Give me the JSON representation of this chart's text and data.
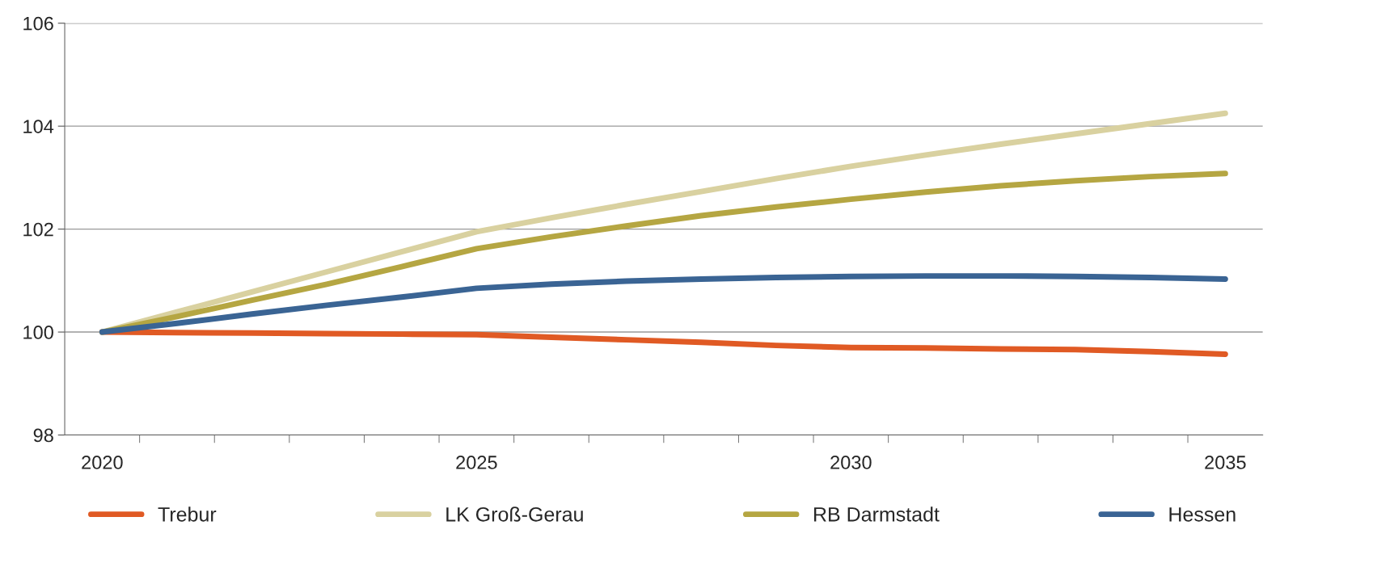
{
  "chart_data": {
    "type": "line",
    "x": [
      2020,
      2021,
      2022,
      2023,
      2024,
      2025,
      2026,
      2027,
      2028,
      2029,
      2030,
      2031,
      2032,
      2033,
      2034,
      2035
    ],
    "xlim": [
      2019.5,
      2035.5
    ],
    "xticks": [
      2020,
      {
        "value": 2020.5,
        "label": null
      },
      {
        "value": 2021.5,
        "label": null
      },
      {
        "value": 2022.5,
        "label": null
      },
      {
        "value": 2023.5,
        "label": null
      },
      {
        "value": 2024.5,
        "label": null
      },
      2025,
      {
        "value": 2025.5,
        "label": null
      },
      {
        "value": 2026.5,
        "label": null
      },
      {
        "value": 2027.5,
        "label": null
      },
      {
        "value": 2028.5,
        "label": null
      },
      {
        "value": 2029.5,
        "label": null
      },
      2030,
      {
        "value": 2030.5,
        "label": null
      },
      {
        "value": 2031.5,
        "label": null
      },
      {
        "value": 2032.5,
        "label": null
      },
      {
        "value": 2033.5,
        "label": null
      },
      {
        "value": 2034.5,
        "label": null
      },
      2035
    ],
    "ylim": [
      98,
      106
    ],
    "yticks": [
      98,
      100,
      102,
      104,
      106
    ],
    "grid": "y",
    "legend": "bottom",
    "marker": "none",
    "line_style": "solid",
    "series": [
      {
        "name": "Trebur",
        "color": "#e05a24",
        "values": [
          100,
          99.99,
          99.98,
          99.97,
          99.96,
          99.95,
          99.9,
          99.85,
          99.8,
          99.74,
          99.7,
          99.69,
          99.67,
          99.66,
          99.62,
          99.57
        ]
      },
      {
        "name": "LK Groß-Gerau",
        "color": "#d9d1a0",
        "values": [
          100,
          100.39,
          100.78,
          101.17,
          101.56,
          101.95,
          102.22,
          102.48,
          102.73,
          102.98,
          103.22,
          103.44,
          103.65,
          103.85,
          104.05,
          104.25
        ]
      },
      {
        "name": "RB Darmstadt",
        "color": "#b5a642",
        "values": [
          100,
          100.3,
          100.62,
          100.93,
          101.27,
          101.62,
          101.85,
          102.06,
          102.26,
          102.43,
          102.58,
          102.72,
          102.84,
          102.94,
          103.02,
          103.08
        ]
      },
      {
        "name": "Hessen",
        "color": "#3a6494",
        "values": [
          100,
          100.17,
          100.35,
          100.52,
          100.68,
          100.85,
          100.93,
          100.99,
          101.03,
          101.06,
          101.08,
          101.09,
          101.09,
          101.08,
          101.06,
          101.03
        ]
      }
    ]
  }
}
